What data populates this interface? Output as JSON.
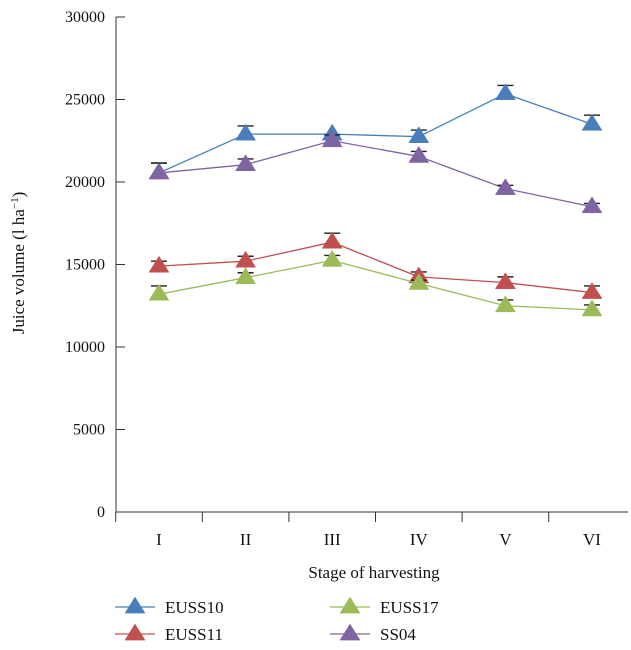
{
  "chart_data": {
    "type": "line",
    "title": "",
    "xlabel": "Stage of harvesting",
    "ylabel": "Juice volume (l ha",
    "ylabel_sup": "−1",
    "ylabel_close": ")",
    "categories": [
      "I",
      "II",
      "III",
      "IV",
      "V",
      "VI"
    ],
    "ylim": [
      0,
      30000
    ],
    "yticks": [
      0,
      5000,
      10000,
      15000,
      20000,
      25000,
      30000
    ],
    "ytick_labels": [
      "0",
      "5000",
      "10000",
      "15000",
      "20000",
      "25000",
      "30000"
    ],
    "grid": false,
    "legend_position": "bottom",
    "marker": "triangle",
    "series": [
      {
        "name": "EUSS10",
        "color": "#4a7ebb",
        "values": [
          20550,
          22900,
          22900,
          22750,
          25350,
          23500
        ],
        "errors": [
          600,
          500,
          0,
          400,
          500,
          550
        ]
      },
      {
        "name": "EUSS11",
        "color": "#c0504d",
        "values": [
          14900,
          15200,
          16350,
          14250,
          13900,
          13300
        ],
        "errors": [
          300,
          300,
          550,
          300,
          350,
          400
        ]
      },
      {
        "name": "EUSS17",
        "color": "#9bbb59",
        "values": [
          13200,
          14200,
          15250,
          13850,
          12500,
          12250
        ],
        "errors": [
          500,
          300,
          300,
          200,
          350,
          300
        ]
      },
      {
        "name": "SS04",
        "color": "#8064a2",
        "values": [
          20550,
          21050,
          22500,
          21550,
          19600,
          18500
        ],
        "errors": [
          600,
          350,
          350,
          300,
          200,
          200
        ]
      }
    ]
  }
}
